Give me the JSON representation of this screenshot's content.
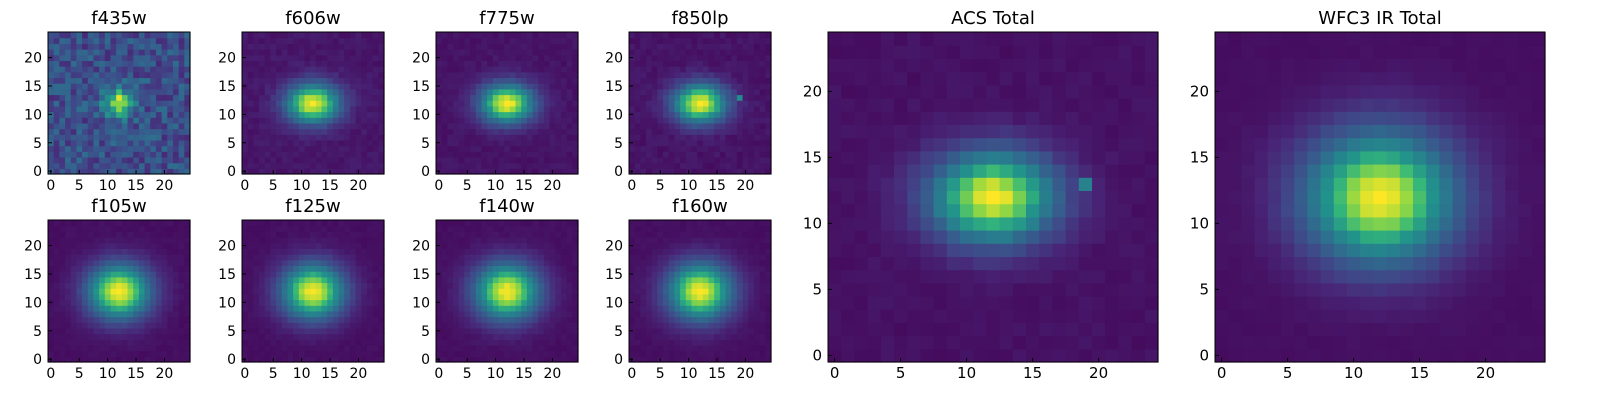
{
  "chart_data": [
    {
      "type": "heatmap",
      "title": "f435w",
      "grid_size": 25,
      "ticks": [
        0,
        5,
        10,
        15,
        20
      ],
      "colormap": "viridis",
      "source_center": [
        12,
        12
      ],
      "source_sigma": [
        1.9,
        1.7
      ],
      "noise": 0.3,
      "background": 0.3,
      "xlim": [
        0,
        24
      ],
      "ylim": [
        0,
        24
      ]
    },
    {
      "type": "heatmap",
      "title": "f606w",
      "grid_size": 25,
      "ticks": [
        0,
        5,
        10,
        15,
        20
      ],
      "colormap": "viridis",
      "source_center": [
        12,
        12
      ],
      "source_sigma": [
        3.4,
        2.5
      ],
      "noise": 0.06,
      "background": 0.08,
      "xlim": [
        0,
        24
      ],
      "ylim": [
        0,
        24
      ]
    },
    {
      "type": "heatmap",
      "title": "f775w",
      "grid_size": 25,
      "ticks": [
        0,
        5,
        10,
        15,
        20
      ],
      "colormap": "viridis",
      "source_center": [
        12,
        12
      ],
      "source_sigma": [
        3.4,
        2.5
      ],
      "noise": 0.05,
      "background": 0.07,
      "xlim": [
        0,
        24
      ],
      "ylim": [
        0,
        24
      ]
    },
    {
      "type": "heatmap",
      "title": "f850lp",
      "grid_size": 25,
      "ticks": [
        0,
        5,
        10,
        15,
        20
      ],
      "colormap": "viridis",
      "source_center": [
        12,
        12
      ],
      "source_sigma": [
        3.4,
        2.5
      ],
      "noise": 0.06,
      "background": 0.07,
      "hotspot": [
        19,
        13,
        0.6
      ],
      "xlim": [
        0,
        24
      ],
      "ylim": [
        0,
        24
      ]
    },
    {
      "type": "heatmap",
      "title": "f105w",
      "grid_size": 25,
      "ticks": [
        0,
        5,
        10,
        15,
        20
      ],
      "colormap": "viridis",
      "source_center": [
        12,
        12
      ],
      "source_sigma": [
        4.0,
        3.5
      ],
      "noise": 0.03,
      "background": 0.05,
      "xlim": [
        0,
        24
      ],
      "ylim": [
        0,
        24
      ]
    },
    {
      "type": "heatmap",
      "title": "f125w",
      "grid_size": 25,
      "ticks": [
        0,
        5,
        10,
        15,
        20
      ],
      "colormap": "viridis",
      "source_center": [
        12,
        12
      ],
      "source_sigma": [
        4.0,
        3.5
      ],
      "noise": 0.03,
      "background": 0.05,
      "xlim": [
        0,
        24
      ],
      "ylim": [
        0,
        24
      ]
    },
    {
      "type": "heatmap",
      "title": "f140w",
      "grid_size": 25,
      "ticks": [
        0,
        5,
        10,
        15,
        20
      ],
      "colormap": "viridis",
      "source_center": [
        12,
        12
      ],
      "source_sigma": [
        4.1,
        3.6
      ],
      "noise": 0.03,
      "background": 0.05,
      "xlim": [
        0,
        24
      ],
      "ylim": [
        0,
        24
      ]
    },
    {
      "type": "heatmap",
      "title": "f160w",
      "grid_size": 25,
      "ticks": [
        0,
        5,
        10,
        15,
        20
      ],
      "colormap": "viridis",
      "source_center": [
        12,
        12
      ],
      "source_sigma": [
        4.1,
        3.6
      ],
      "noise": 0.03,
      "background": 0.05,
      "xlim": [
        0,
        24
      ],
      "ylim": [
        0,
        24
      ]
    },
    {
      "type": "heatmap",
      "title": "ACS Total",
      "grid_size": 25,
      "ticks": [
        0,
        5,
        10,
        15,
        20
      ],
      "colormap": "viridis",
      "source_center": [
        12,
        12
      ],
      "source_sigma": [
        3.4,
        2.5
      ],
      "noise": 0.04,
      "background": 0.06,
      "hotspot": [
        19,
        13,
        0.55
      ],
      "xlim": [
        0,
        24
      ],
      "ylim": [
        0,
        24
      ]
    },
    {
      "type": "heatmap",
      "title": "WFC3 IR Total",
      "grid_size": 25,
      "ticks": [
        0,
        5,
        10,
        15,
        20
      ],
      "colormap": "viridis",
      "source_center": [
        12,
        12
      ],
      "source_sigma": [
        4.1,
        3.6
      ],
      "noise": 0.02,
      "background": 0.05,
      "xlim": [
        0,
        24
      ],
      "ylim": [
        0,
        24
      ]
    }
  ]
}
